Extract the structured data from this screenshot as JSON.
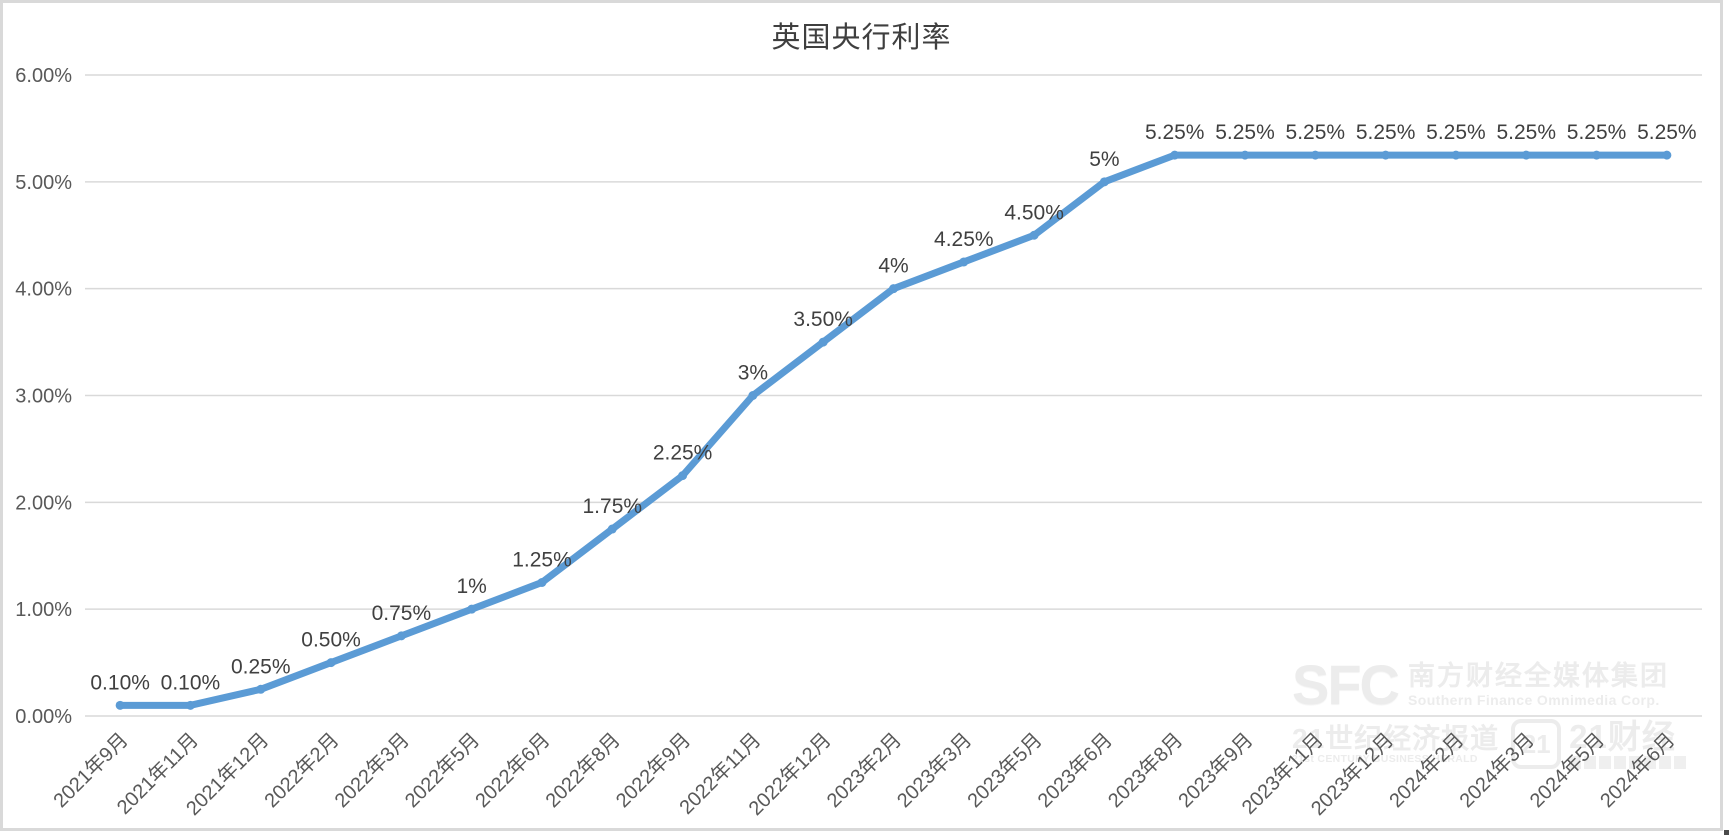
{
  "chart_data": {
    "type": "line",
    "title": "英国央行利率",
    "categories": [
      "2021年9月",
      "2021年11月",
      "2021年12月",
      "2022年2月",
      "2022年3月",
      "2022年5月",
      "2022年6月",
      "2022年8月",
      "2022年9月",
      "2022年11月",
      "2022年12月",
      "2023年2月",
      "2023年3月",
      "2023年5月",
      "2023年6月",
      "2023年8月",
      "2023年9月",
      "2023年11月",
      "2023年12月",
      "2024年2月",
      "2024年3月",
      "2024年5月",
      "2024年6月"
    ],
    "values": [
      0.1,
      0.1,
      0.25,
      0.5,
      0.75,
      1,
      1.25,
      1.75,
      2.25,
      3,
      3.5,
      4,
      4.25,
      4.5,
      5,
      5.25,
      5.25,
      5.25,
      5.25,
      5.25,
      5.25,
      5.25,
      5.25
    ],
    "point_labels": [
      "0.10%",
      "0.10%",
      "0.25%",
      "0.50%",
      "0.75%",
      "1%",
      "1.25%",
      "1.75%",
      "2.25%",
      "3%",
      "3.50%",
      "4%",
      "4.25%",
      "4.50%",
      "5%",
      "5.25%",
      "5.25%",
      "5.25%",
      "5.25%",
      "5.25%",
      "5.25%",
      "5.25%",
      "5.25%"
    ],
    "y_tick_labels": [
      "6.00%",
      "5.00%",
      "4.00%",
      "3.00%",
      "2.00%",
      "1.00%",
      "0.00%"
    ],
    "ylim": [
      0,
      6
    ],
    "grid": true,
    "legend_position": "none",
    "line_color": "#5B9BD5",
    "grid_color": "#d9d9d9",
    "axis_label_color": "#595959",
    "data_label_color": "#404040",
    "title_color": "#3f3f3f"
  },
  "watermark": {
    "logo": "SFC",
    "org_cn": "南方财经全媒体集团",
    "org_en": "Southern Finance Omnimedia Corp.",
    "herald_cn": "21世纪经济报道",
    "herald_en": "21st CENTURY BUSINESS HERALD",
    "badge": "21",
    "app_cn": "21财经"
  }
}
